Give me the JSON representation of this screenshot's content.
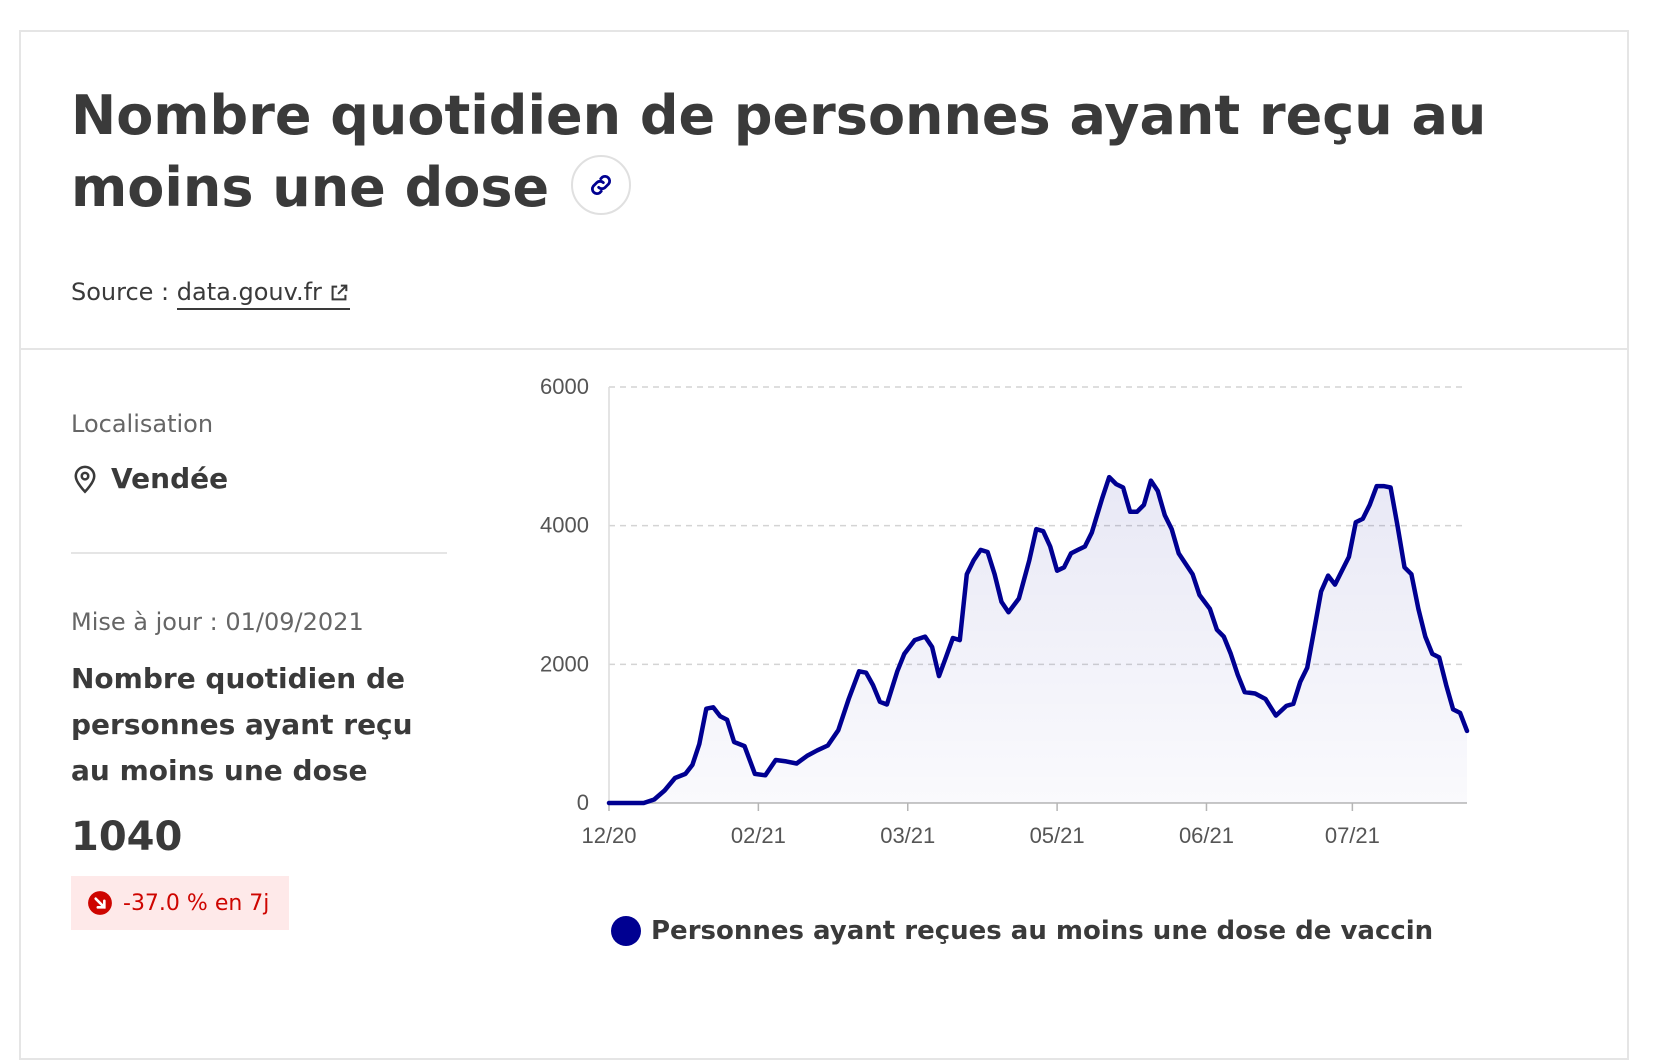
{
  "header": {
    "title": "Nombre quotidien de personnes ayant reçu au moins une dose",
    "source_label": "Source :",
    "source_link": "data.gouv.fr"
  },
  "sidebar": {
    "location_label": "Localisation",
    "location_value": "Vendée",
    "updated": "Mise à jour : 01/09/2021",
    "kpi_label": "Nombre quotidien de personnes ayant reçu au moins une dose",
    "kpi_value": "1040",
    "kpi_trend": "-37.0 % en 7j"
  },
  "colors": {
    "accent": "#000091",
    "trend_down": "#ce0500",
    "trend_bg": "#fee9e9"
  },
  "chart_data": {
    "type": "area",
    "title": "",
    "xlabel": "",
    "ylabel": "",
    "x_range": [
      "2020-12-27",
      "2021-08-31"
    ],
    "ylim": [
      0,
      6000
    ],
    "y_ticks": [
      0,
      2000,
      4000,
      6000
    ],
    "x_ticks": [
      {
        "label": "12/20",
        "date": "2020-12-27"
      },
      {
        "label": "02/21",
        "date": "2021-02-08"
      },
      {
        "label": "03/21",
        "date": "2021-03-23"
      },
      {
        "label": "05/21",
        "date": "2021-05-05"
      },
      {
        "label": "06/21",
        "date": "2021-06-17"
      },
      {
        "label": "07/21",
        "date": "2021-07-29"
      }
    ],
    "grid": true,
    "legend_position": "bottom",
    "series": [
      {
        "name": "Personnes ayant reçues au moins une dose de vaccin",
        "points": [
          [
            "2020-12-27",
            0
          ],
          [
            "2021-01-06",
            0
          ],
          [
            "2021-01-09",
            50
          ],
          [
            "2021-01-12",
            180
          ],
          [
            "2021-01-15",
            360
          ],
          [
            "2021-01-18",
            420
          ],
          [
            "2021-01-20",
            550
          ],
          [
            "2021-01-22",
            850
          ],
          [
            "2021-01-24",
            1360
          ],
          [
            "2021-01-26",
            1380
          ],
          [
            "2021-01-28",
            1250
          ],
          [
            "2021-01-30",
            1200
          ],
          [
            "2021-02-01",
            880
          ],
          [
            "2021-02-04",
            820
          ],
          [
            "2021-02-07",
            420
          ],
          [
            "2021-02-10",
            400
          ],
          [
            "2021-02-13",
            620
          ],
          [
            "2021-02-16",
            600
          ],
          [
            "2021-02-19",
            570
          ],
          [
            "2021-02-22",
            680
          ],
          [
            "2021-02-25",
            760
          ],
          [
            "2021-02-28",
            830
          ],
          [
            "2021-03-03",
            1050
          ],
          [
            "2021-03-06",
            1500
          ],
          [
            "2021-03-09",
            1900
          ],
          [
            "2021-03-11",
            1880
          ],
          [
            "2021-03-13",
            1700
          ],
          [
            "2021-03-15",
            1460
          ],
          [
            "2021-03-17",
            1420
          ],
          [
            "2021-03-20",
            1900
          ],
          [
            "2021-03-22",
            2150
          ],
          [
            "2021-03-25",
            2350
          ],
          [
            "2021-03-28",
            2400
          ],
          [
            "2021-03-30",
            2250
          ],
          [
            "2021-04-01",
            1830
          ],
          [
            "2021-04-03",
            2100
          ],
          [
            "2021-04-05",
            2380
          ],
          [
            "2021-04-07",
            2350
          ],
          [
            "2021-04-09",
            3300
          ],
          [
            "2021-04-11",
            3500
          ],
          [
            "2021-04-13",
            3650
          ],
          [
            "2021-04-15",
            3620
          ],
          [
            "2021-04-17",
            3300
          ],
          [
            "2021-04-19",
            2900
          ],
          [
            "2021-04-21",
            2750
          ],
          [
            "2021-04-24",
            2950
          ],
          [
            "2021-04-27",
            3500
          ],
          [
            "2021-04-29",
            3950
          ],
          [
            "2021-05-01",
            3920
          ],
          [
            "2021-05-03",
            3700
          ],
          [
            "2021-05-05",
            3350
          ],
          [
            "2021-05-07",
            3400
          ],
          [
            "2021-05-09",
            3600
          ],
          [
            "2021-05-11",
            3650
          ],
          [
            "2021-05-13",
            3700
          ],
          [
            "2021-05-15",
            3900
          ],
          [
            "2021-05-18",
            4400
          ],
          [
            "2021-05-20",
            4700
          ],
          [
            "2021-05-22",
            4600
          ],
          [
            "2021-05-24",
            4550
          ],
          [
            "2021-05-26",
            4200
          ],
          [
            "2021-05-28",
            4200
          ],
          [
            "2021-05-30",
            4300
          ],
          [
            "2021-06-01",
            4650
          ],
          [
            "2021-06-03",
            4500
          ],
          [
            "2021-06-05",
            4150
          ],
          [
            "2021-06-07",
            3950
          ],
          [
            "2021-06-09",
            3600
          ],
          [
            "2021-06-11",
            3450
          ],
          [
            "2021-06-13",
            3300
          ],
          [
            "2021-06-15",
            3000
          ],
          [
            "2021-06-18",
            2800
          ],
          [
            "2021-06-20",
            2500
          ],
          [
            "2021-06-22",
            2400
          ],
          [
            "2021-06-24",
            2150
          ],
          [
            "2021-06-26",
            1850
          ],
          [
            "2021-06-28",
            1600
          ],
          [
            "2021-07-01",
            1580
          ],
          [
            "2021-07-04",
            1500
          ],
          [
            "2021-07-07",
            1260
          ],
          [
            "2021-07-10",
            1400
          ],
          [
            "2021-07-12",
            1430
          ],
          [
            "2021-07-14",
            1750
          ],
          [
            "2021-07-16",
            1950
          ],
          [
            "2021-07-18",
            2500
          ],
          [
            "2021-07-20",
            3050
          ],
          [
            "2021-07-22",
            3280
          ],
          [
            "2021-07-24",
            3150
          ],
          [
            "2021-07-26",
            3350
          ],
          [
            "2021-07-28",
            3550
          ],
          [
            "2021-07-30",
            4050
          ],
          [
            "2021-08-01",
            4100
          ],
          [
            "2021-08-03",
            4300
          ],
          [
            "2021-08-05",
            4570
          ],
          [
            "2021-08-07",
            4570
          ],
          [
            "2021-08-09",
            4550
          ],
          [
            "2021-08-11",
            4000
          ],
          [
            "2021-08-13",
            3400
          ],
          [
            "2021-08-15",
            3300
          ],
          [
            "2021-08-17",
            2800
          ],
          [
            "2021-08-19",
            2400
          ],
          [
            "2021-08-21",
            2150
          ],
          [
            "2021-08-23",
            2100
          ],
          [
            "2021-08-25",
            1700
          ],
          [
            "2021-08-27",
            1350
          ],
          [
            "2021-08-29",
            1300
          ],
          [
            "2021-08-31",
            1040
          ]
        ]
      }
    ]
  }
}
